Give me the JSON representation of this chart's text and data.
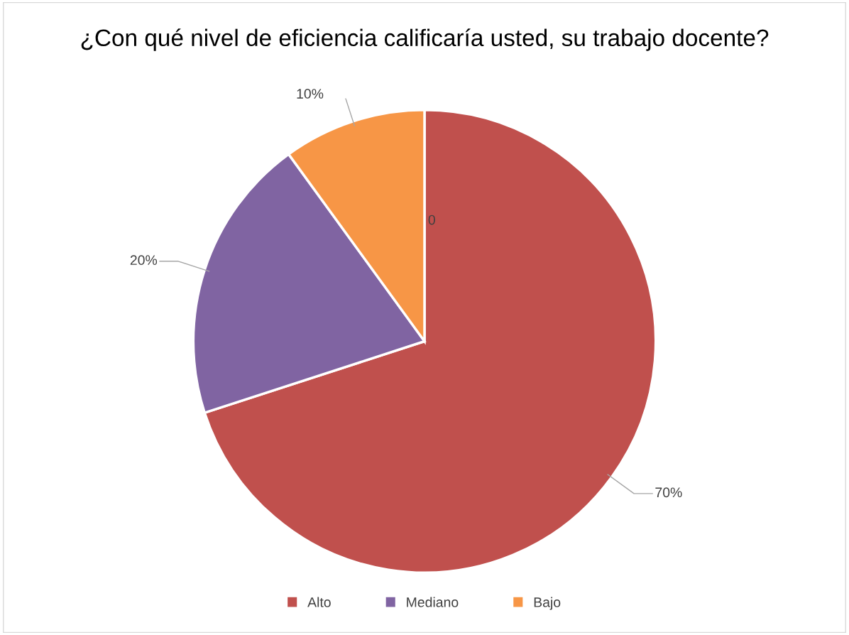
{
  "chart_data": {
    "type": "pie",
    "title": "¿Con qué nivel de eficiencia calificaría usted, su trabajo docente?",
    "categories": [
      "Alto",
      "Mediano",
      "Bajo"
    ],
    "values": [
      70,
      20,
      10
    ],
    "value_labels": [
      "70%",
      "20%",
      "10%"
    ],
    "colors": [
      "#c0504d",
      "#8064a2",
      "#f79646"
    ],
    "annotations": [
      "0"
    ],
    "legend": "bottom"
  }
}
